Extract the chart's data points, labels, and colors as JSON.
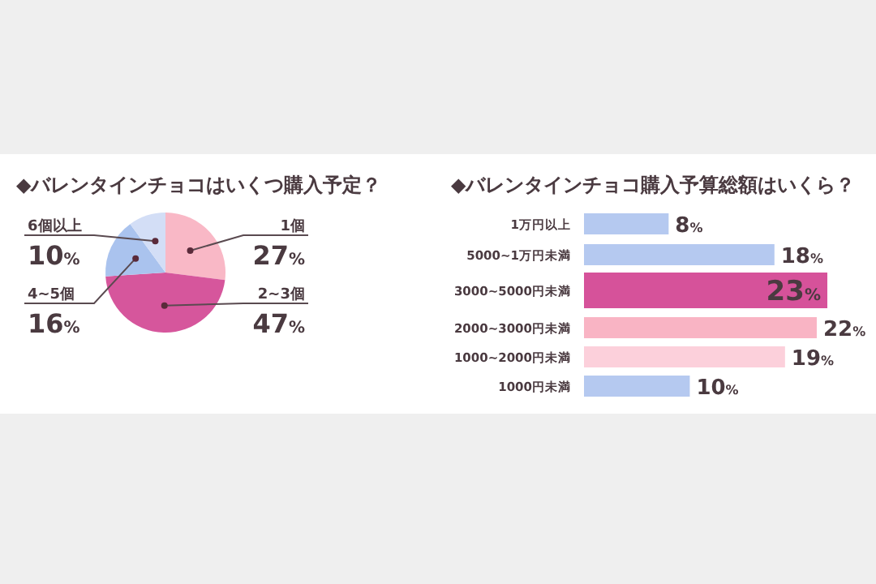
{
  "chart_data": [
    {
      "type": "pie",
      "title": "◆バレンタインチョコはいくつ購入予定？",
      "categories": [
        "1個",
        "2~3個",
        "4~5個",
        "6個以上"
      ],
      "values": [
        27,
        47,
        16,
        10
      ],
      "colors": [
        "#f9b8c6",
        "#d6569c",
        "#aac3ee",
        "#d3def6"
      ],
      "value_labels": [
        "27%",
        "47%",
        "16%",
        "10%"
      ]
    },
    {
      "type": "bar",
      "orientation": "horizontal",
      "title": "◆バレンタインチョコ購入予算総額はいくら？",
      "categories": [
        "1万円以上",
        "5000~1万円未満",
        "3000~5000円未満",
        "2000~3000円未満",
        "1000~2000円未満",
        "1000円未満"
      ],
      "values": [
        8,
        18,
        23,
        22,
        19,
        10
      ],
      "colors": [
        "#b5c9f0",
        "#b5c9f0",
        "#d6529a",
        "#f9b4c4",
        "#fcd0db",
        "#b5c9f0"
      ],
      "value_labels": [
        "8%",
        "18%",
        "23%",
        "22%",
        "19%",
        "10%"
      ]
    }
  ]
}
